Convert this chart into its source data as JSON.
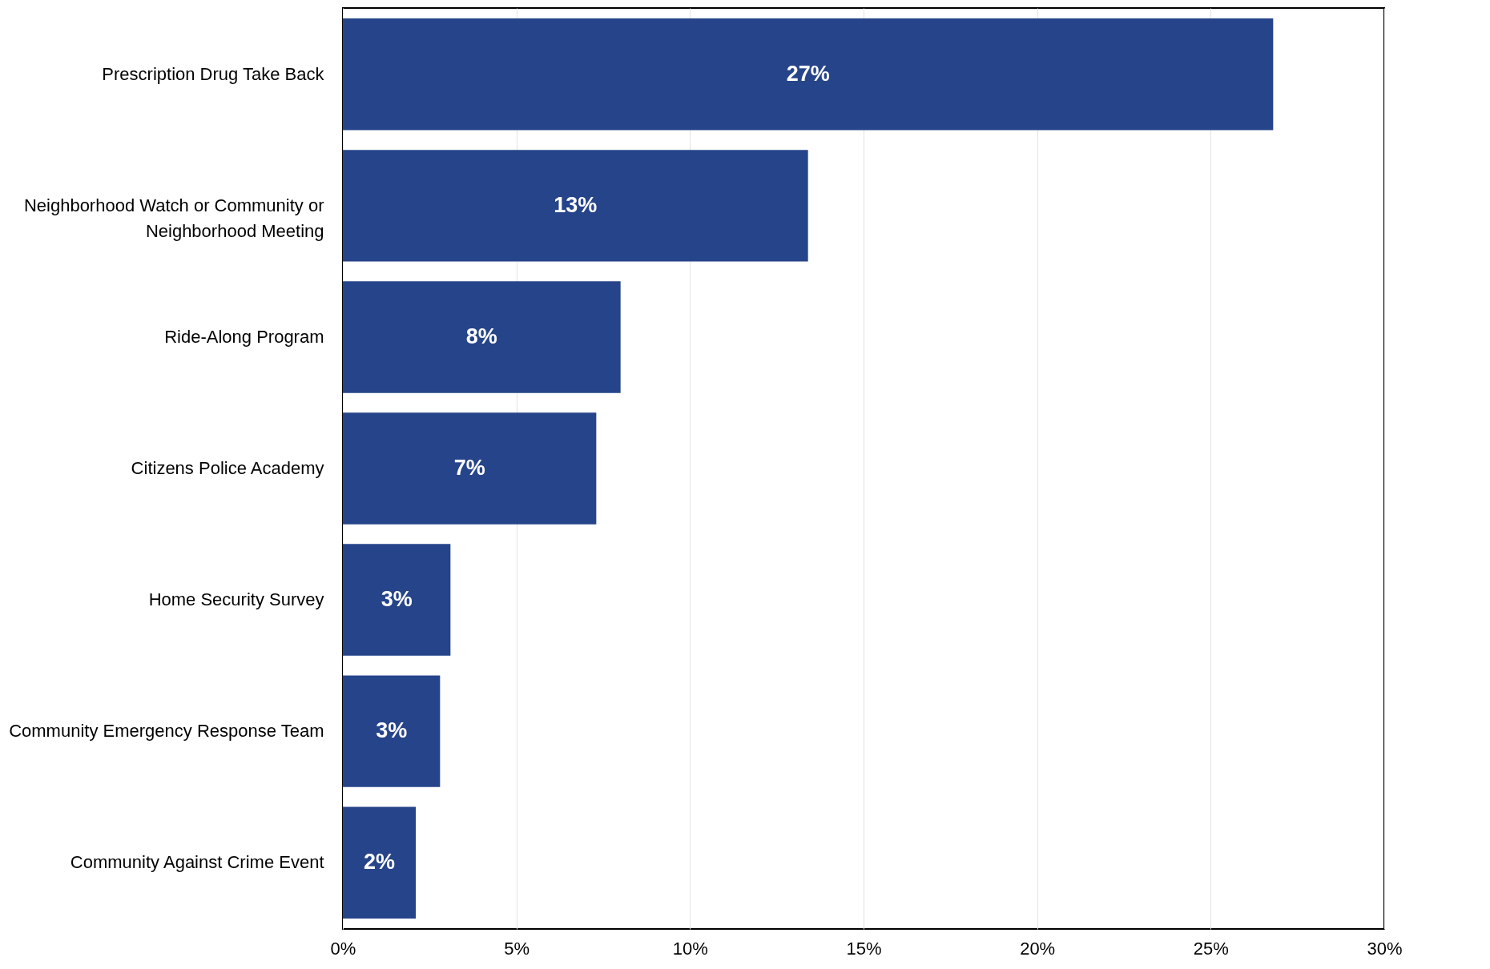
{
  "chart_data": {
    "type": "bar",
    "orientation": "horizontal",
    "categories": [
      "Prescription Drug Take Back",
      "Neighborhood Watch or Community or Neighborhood Meeting",
      "Ride-Along Program",
      "Citizens Police Academy",
      "Home Security Survey",
      "Community Emergency Response Team",
      "Community Against Crime Event"
    ],
    "values": [
      26.8,
      13.4,
      8.0,
      7.3,
      3.1,
      2.8,
      2.1
    ],
    "value_labels": [
      "27%",
      "13%",
      "8%",
      "7%",
      "3%",
      "3%",
      "2%"
    ],
    "color": "#26448a",
    "xlim": [
      0,
      30
    ],
    "xticks": [
      {
        "value": 0,
        "label": "0%"
      },
      {
        "value": 5,
        "label": "5%"
      },
      {
        "value": 10,
        "label": "10%"
      },
      {
        "value": 15,
        "label": "15%"
      },
      {
        "value": 20,
        "label": "20%"
      },
      {
        "value": 25,
        "label": "25%"
      },
      {
        "value": 30,
        "label": "30%"
      }
    ],
    "grid": "x"
  }
}
